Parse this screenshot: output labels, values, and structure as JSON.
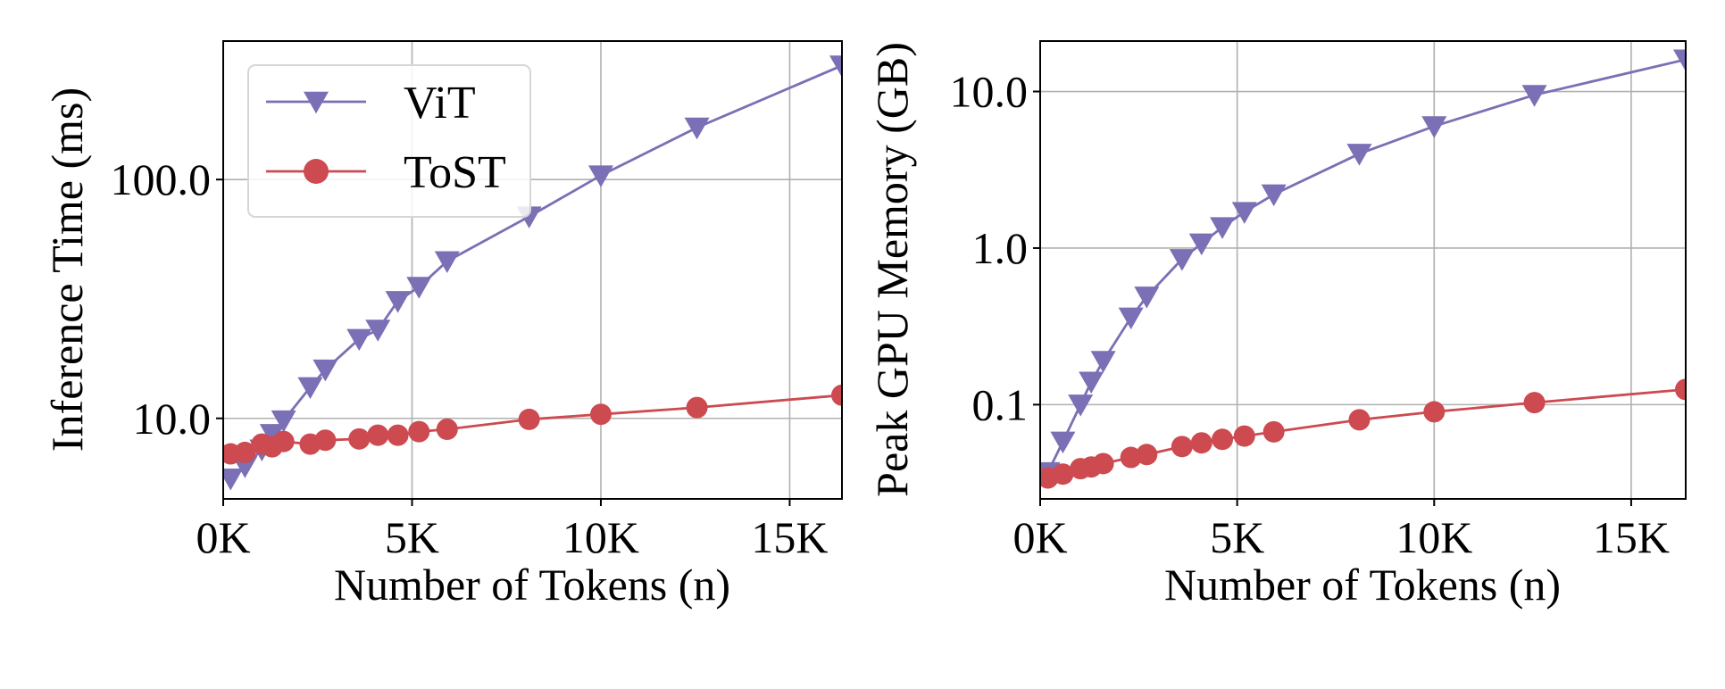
{
  "colors": {
    "vit": "#7b6fb5",
    "tost": "#cc4a50",
    "grid": "#b0b0b0"
  },
  "legend": {
    "placement": "upper-left of left panel",
    "entries": [
      "ViT",
      "ToST"
    ]
  },
  "chart_data": [
    {
      "type": "line",
      "yscale": "log",
      "xlabel": "Number of Tokens (n)",
      "ylabel": "Inference Time (ms)",
      "xlim": [
        0,
        16384
      ],
      "ylim": [
        4.6,
        380
      ],
      "xticks": [
        0,
        5000,
        10000,
        15000
      ],
      "xtick_labels": [
        "0K",
        "5K",
        "10K",
        "15K"
      ],
      "yticks": [
        10,
        100
      ],
      "ytick_labels": [
        "10.0",
        "100.0"
      ],
      "grid": true,
      "legend": "upper-left",
      "series": [
        {
          "name": "ViT",
          "marker": "triangle-down",
          "color": "#7b6fb5",
          "x": [
            196,
            576,
            1024,
            1296,
            1600,
            2304,
            2704,
            3600,
            4096,
            4624,
            5184,
            5929,
            8100,
            10000,
            12544,
            16384
          ],
          "y": [
            5.6,
            6.3,
            7.4,
            8.6,
            9.8,
            13.5,
            16,
            21.5,
            23.5,
            31,
            35.5,
            45.5,
            70,
            104,
            165,
            300
          ]
        },
        {
          "name": "ToST",
          "marker": "circle",
          "color": "#cc4a50",
          "x": [
            196,
            576,
            1024,
            1296,
            1600,
            2304,
            2704,
            3600,
            4096,
            4624,
            5184,
            5929,
            8100,
            10000,
            12544,
            16384
          ],
          "y": [
            7.1,
            7.2,
            7.8,
            7.6,
            8.0,
            7.8,
            8.1,
            8.2,
            8.5,
            8.5,
            8.8,
            9.0,
            9.9,
            10.4,
            11.1,
            12.5
          ]
        }
      ]
    },
    {
      "type": "line",
      "yscale": "log",
      "xlabel": "Number of Tokens (n)",
      "ylabel": "Peak GPU Memory (GB)",
      "xlim": [
        0,
        16384
      ],
      "ylim": [
        0.025,
        21
      ],
      "xticks": [
        0,
        5000,
        10000,
        15000
      ],
      "xtick_labels": [
        "0K",
        "5K",
        "10K",
        "15K"
      ],
      "yticks": [
        0.1,
        1,
        10
      ],
      "ytick_labels": [
        "0.1",
        "1.0",
        "10.0"
      ],
      "grid": true,
      "legend": "none",
      "series": [
        {
          "name": "ViT",
          "marker": "triangle-down",
          "color": "#7b6fb5",
          "x": [
            196,
            576,
            1024,
            1296,
            1600,
            2304,
            2704,
            3600,
            4096,
            4624,
            5184,
            5929,
            8100,
            10000,
            12544,
            16384
          ],
          "y": [
            0.037,
            0.058,
            0.1,
            0.14,
            0.19,
            0.36,
            0.49,
            0.85,
            1.07,
            1.36,
            1.7,
            2.2,
            4.0,
            6.0,
            9.5,
            16.0
          ]
        },
        {
          "name": "ToST",
          "marker": "circle",
          "color": "#cc4a50",
          "x": [
            196,
            576,
            1024,
            1296,
            1600,
            2304,
            2704,
            3600,
            4096,
            4624,
            5184,
            5929,
            8100,
            10000,
            12544,
            16384
          ],
          "y": [
            0.034,
            0.036,
            0.039,
            0.04,
            0.042,
            0.046,
            0.048,
            0.054,
            0.057,
            0.06,
            0.063,
            0.067,
            0.08,
            0.09,
            0.103,
            0.125
          ]
        }
      ]
    }
  ]
}
